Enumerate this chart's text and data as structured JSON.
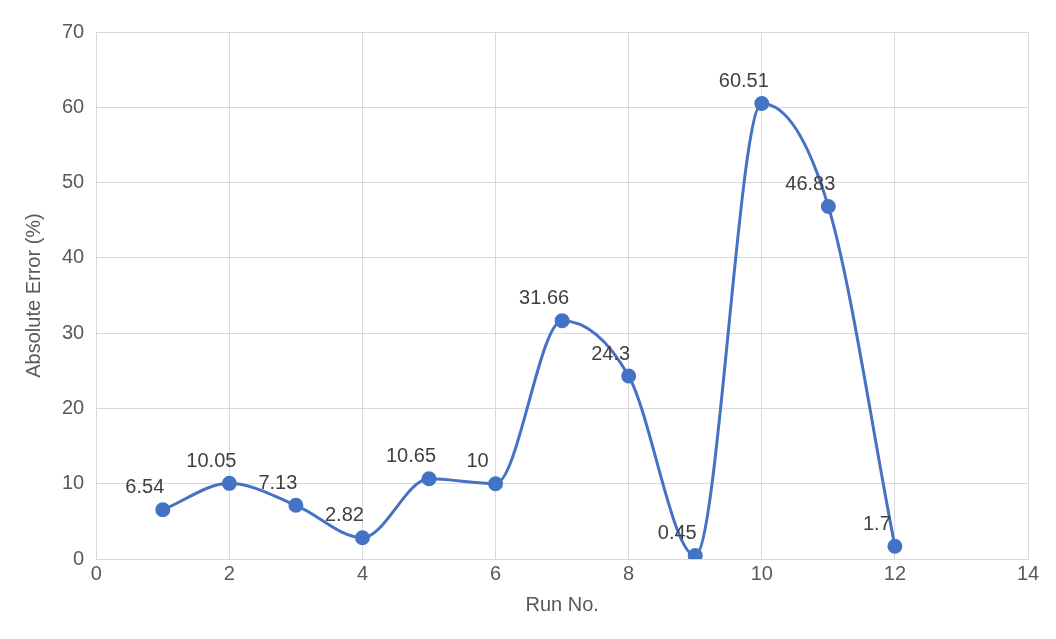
{
  "chart_data": {
    "type": "line",
    "xlabel": "Run No.",
    "ylabel": "Absolute Error (%)",
    "x": [
      1,
      2,
      3,
      4,
      5,
      6,
      7,
      8,
      9,
      10,
      11,
      12
    ],
    "series": [
      {
        "color": "#4472c4",
        "values": [
          6.54,
          10.05,
          7.13,
          2.82,
          10.65,
          10,
          31.66,
          24.3,
          0.45,
          60.51,
          46.83,
          1.7
        ]
      }
    ],
    "xlim": [
      0,
      14
    ],
    "xticks": [
      0,
      2,
      4,
      6,
      8,
      10,
      12,
      14
    ],
    "ylim": [
      0,
      70
    ],
    "yticks": [
      0,
      10,
      20,
      30,
      40,
      50,
      60,
      70
    ],
    "grid": true,
    "legend": false,
    "marker": "circle",
    "line_style": "solid",
    "data_labels": true
  }
}
